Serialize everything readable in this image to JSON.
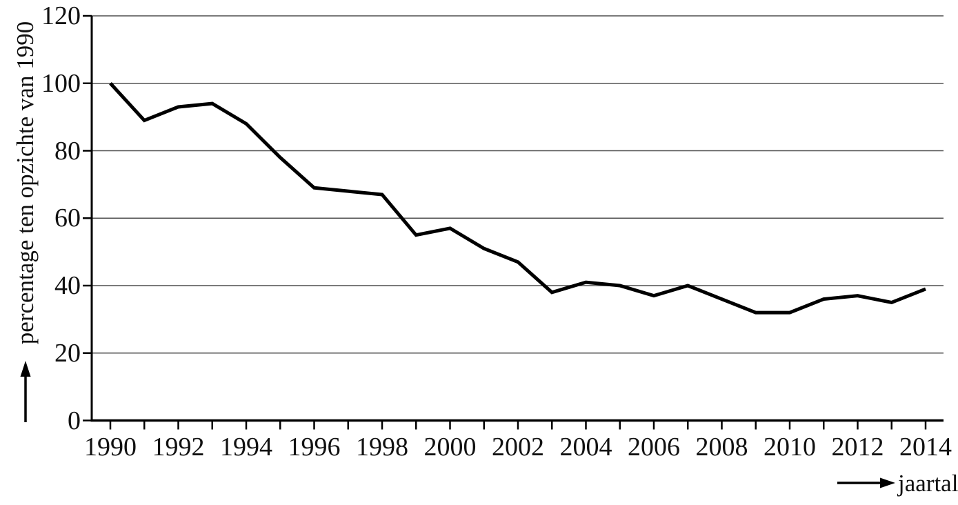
{
  "chart_data": {
    "type": "line",
    "title": "",
    "xlabel": "jaartal",
    "ylabel": "percentage ten opzichte van 1990",
    "x": [
      1990,
      1991,
      1992,
      1993,
      1994,
      1995,
      1996,
      1997,
      1998,
      1999,
      2000,
      2001,
      2002,
      2003,
      2004,
      2005,
      2006,
      2007,
      2008,
      2009,
      2010,
      2011,
      2012,
      2013,
      2014
    ],
    "series": [
      {
        "name": "percentage ten opzichte van 1990",
        "values": [
          100,
          89,
          93,
          94,
          88,
          78,
          69,
          68,
          67,
          55,
          57,
          51,
          47,
          38,
          41,
          40,
          37,
          40,
          36,
          32,
          32,
          36,
          37,
          35,
          39
        ]
      }
    ],
    "ylim": [
      0,
      120
    ],
    "yticks": [
      0,
      20,
      40,
      60,
      80,
      100,
      120
    ],
    "xtick_labeled_years": [
      1990,
      1992,
      1994,
      1996,
      1998,
      2000,
      2002,
      2004,
      2006,
      2008,
      2010,
      2012,
      2014
    ],
    "grid": "horizontal",
    "legend": "none",
    "line_color": "#000000",
    "grid_color": "#4f4f4f",
    "axis_color": "#000000"
  }
}
